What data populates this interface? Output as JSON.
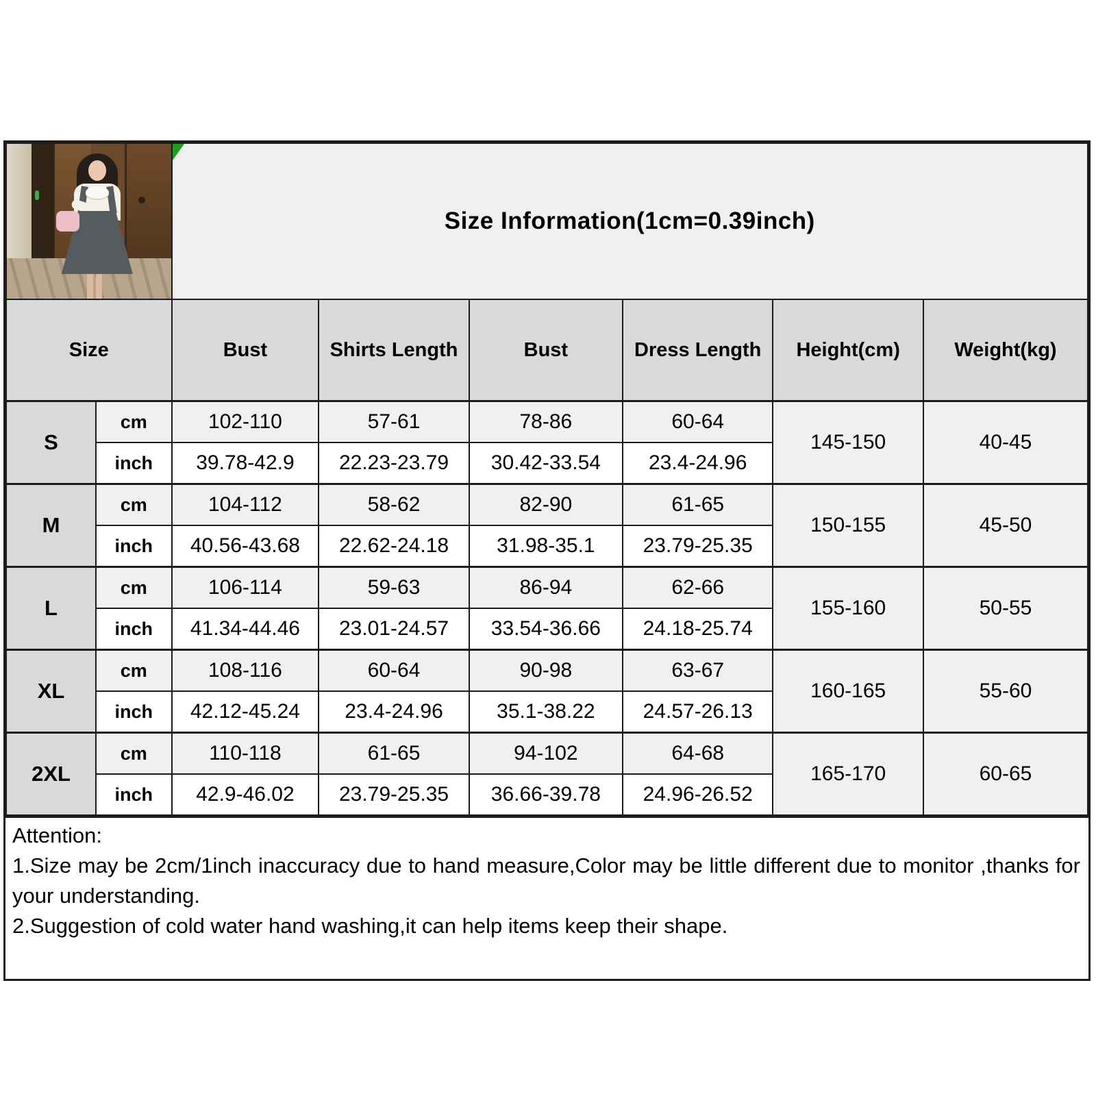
{
  "banner": {
    "title": "Size Information(1cm=0.39inch)"
  },
  "table": {
    "columns": [
      "Size",
      "Bust",
      "Shirts Length",
      "Bust",
      "Dress Length",
      "Height(cm)",
      "Weight(kg)"
    ],
    "unit_labels": {
      "cm": "cm",
      "inch": "inch"
    },
    "rows": [
      {
        "size": "S",
        "cm": [
          "102-110",
          "57-61",
          "78-86",
          "60-64"
        ],
        "inch": [
          "39.78-42.9",
          "22.23-23.79",
          "30.42-33.54",
          "23.4-24.96"
        ],
        "height": "145-150",
        "weight": "40-45"
      },
      {
        "size": "M",
        "cm": [
          "104-112",
          "58-62",
          "82-90",
          "61-65"
        ],
        "inch": [
          "40.56-43.68",
          "22.62-24.18",
          "31.98-35.1",
          "23.79-25.35"
        ],
        "height": "150-155",
        "weight": "45-50"
      },
      {
        "size": "L",
        "cm": [
          "106-114",
          "59-63",
          "86-94",
          "62-66"
        ],
        "inch": [
          "41.34-44.46",
          "23.01-24.57",
          "33.54-36.66",
          "24.18-25.74"
        ],
        "height": "155-160",
        "weight": "50-55"
      },
      {
        "size": "XL",
        "cm": [
          "108-116",
          "60-64",
          "90-98",
          "63-67"
        ],
        "inch": [
          "42.12-45.24",
          "23.4-24.96",
          "35.1-38.22",
          "24.57-26.13"
        ],
        "height": "160-165",
        "weight": "55-60"
      },
      {
        "size": "2XL",
        "cm": [
          "110-118",
          "61-65",
          "94-102",
          "64-68"
        ],
        "inch": [
          "42.9-46.02",
          "23.79-25.35",
          "36.66-39.78",
          "24.96-26.52"
        ],
        "height": "165-170",
        "weight": "60-65"
      }
    ]
  },
  "attention": {
    "heading": "Attention:",
    "note1": "1.Size may be 2cm/1inch inaccuracy due to hand measure,Color may be little different due to monitor ,thanks for your understanding.",
    "note2": "2.Suggestion of cold water hand washing,it can help items keep their shape."
  },
  "icons": {
    "corner_marker": "green-corner-triangle"
  },
  "colors": {
    "border": "#1c1c1c",
    "header_bg": "#d9d9d9",
    "band_bg": "#f0f0f0",
    "white_bg": "#ffffff",
    "marker_green": "#1f9e1d"
  }
}
